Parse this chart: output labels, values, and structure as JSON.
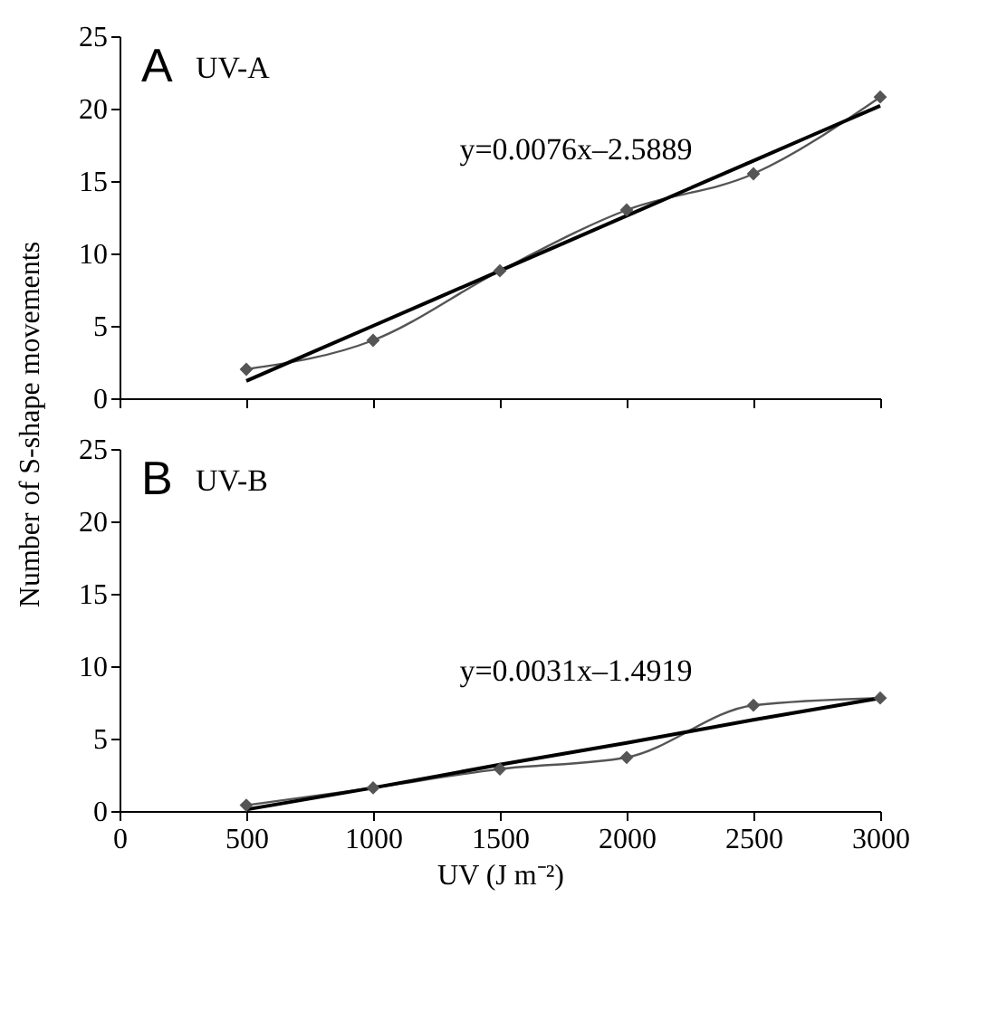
{
  "chart_data": [
    {
      "type": "line",
      "title": "A",
      "subtitle": "UV-A",
      "ylabel": "Number of S-shape movements",
      "x": [
        500,
        1000,
        1500,
        2000,
        2500,
        3000
      ],
      "series": [
        {
          "color": "#555555",
          "values": [
            2,
            4,
            8.8,
            13,
            15.5,
            20.8
          ]
        },
        {
          "type": "line",
          "color": "#000000",
          "values": [
            1.2,
            5.0,
            8.8,
            12.6,
            16.4,
            20.2
          ],
          "marker": "none"
        }
      ],
      "annotations": [
        "y=0.0076x–2.5889"
      ],
      "xlim": [
        0,
        3000
      ],
      "xticks": [
        0,
        500,
        1000,
        1500,
        2000,
        2500,
        3000
      ],
      "ylim": [
        0,
        25
      ],
      "yticks": [
        0,
        5,
        10,
        15,
        20,
        25
      ],
      "tick_labels": "y",
      "marker": "diamond",
      "line_style": "solid",
      "grid": false
    },
    {
      "type": "line",
      "title": "B",
      "subtitle": "UV-B",
      "xlabel": "UV (J m⁻²)",
      "x": [
        500,
        1000,
        1500,
        2000,
        2500,
        3000
      ],
      "series": [
        {
          "color": "#555555",
          "values": [
            0.4,
            1.6,
            2.9,
            3.7,
            7.3,
            7.8
          ]
        },
        {
          "type": "line",
          "color": "#000000",
          "values": [
            0.1,
            1.6,
            3.2,
            4.7,
            6.3,
            7.8
          ],
          "marker": "none"
        }
      ],
      "annotations": [
        "y=0.0031x–1.4919"
      ],
      "xlim": [
        0,
        3000
      ],
      "xticks": [
        0,
        500,
        1000,
        1500,
        2000,
        2500,
        3000
      ],
      "ylim": [
        0,
        25
      ],
      "yticks": [
        0,
        5,
        10,
        15,
        20,
        25
      ],
      "marker": "diamond",
      "line_style": "solid",
      "grid": false
    }
  ]
}
